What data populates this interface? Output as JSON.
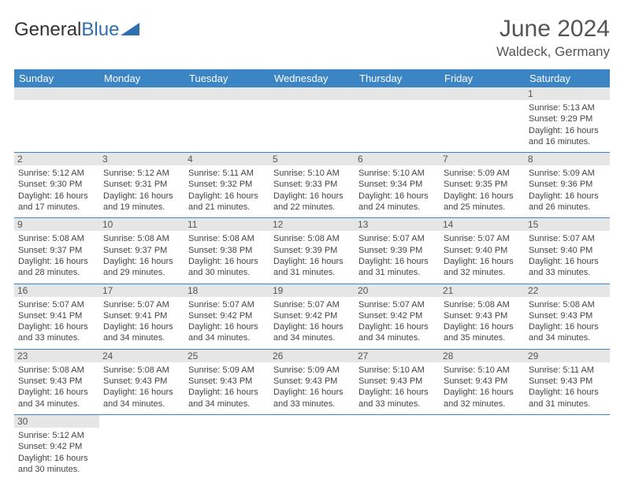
{
  "logo": {
    "text1": "General",
    "text2": "Blue",
    "triangle_color": "#2f6fb0"
  },
  "header": {
    "month": "June 2024",
    "location": "Waldeck, Germany"
  },
  "colors": {
    "header_bg": "#3b85c4",
    "header_text": "#ffffff",
    "daynum_bg": "#e6e6e6",
    "border": "#3b85c4",
    "text": "#444444"
  },
  "columns": [
    "Sunday",
    "Monday",
    "Tuesday",
    "Wednesday",
    "Thursday",
    "Friday",
    "Saturday"
  ],
  "weeks": [
    [
      null,
      null,
      null,
      null,
      null,
      null,
      {
        "n": "1",
        "sr": "Sunrise: 5:13 AM",
        "ss": "Sunset: 9:29 PM",
        "d1": "Daylight: 16 hours",
        "d2": "and 16 minutes."
      }
    ],
    [
      {
        "n": "2",
        "sr": "Sunrise: 5:12 AM",
        "ss": "Sunset: 9:30 PM",
        "d1": "Daylight: 16 hours",
        "d2": "and 17 minutes."
      },
      {
        "n": "3",
        "sr": "Sunrise: 5:12 AM",
        "ss": "Sunset: 9:31 PM",
        "d1": "Daylight: 16 hours",
        "d2": "and 19 minutes."
      },
      {
        "n": "4",
        "sr": "Sunrise: 5:11 AM",
        "ss": "Sunset: 9:32 PM",
        "d1": "Daylight: 16 hours",
        "d2": "and 21 minutes."
      },
      {
        "n": "5",
        "sr": "Sunrise: 5:10 AM",
        "ss": "Sunset: 9:33 PM",
        "d1": "Daylight: 16 hours",
        "d2": "and 22 minutes."
      },
      {
        "n": "6",
        "sr": "Sunrise: 5:10 AM",
        "ss": "Sunset: 9:34 PM",
        "d1": "Daylight: 16 hours",
        "d2": "and 24 minutes."
      },
      {
        "n": "7",
        "sr": "Sunrise: 5:09 AM",
        "ss": "Sunset: 9:35 PM",
        "d1": "Daylight: 16 hours",
        "d2": "and 25 minutes."
      },
      {
        "n": "8",
        "sr": "Sunrise: 5:09 AM",
        "ss": "Sunset: 9:36 PM",
        "d1": "Daylight: 16 hours",
        "d2": "and 26 minutes."
      }
    ],
    [
      {
        "n": "9",
        "sr": "Sunrise: 5:08 AM",
        "ss": "Sunset: 9:37 PM",
        "d1": "Daylight: 16 hours",
        "d2": "and 28 minutes."
      },
      {
        "n": "10",
        "sr": "Sunrise: 5:08 AM",
        "ss": "Sunset: 9:37 PM",
        "d1": "Daylight: 16 hours",
        "d2": "and 29 minutes."
      },
      {
        "n": "11",
        "sr": "Sunrise: 5:08 AM",
        "ss": "Sunset: 9:38 PM",
        "d1": "Daylight: 16 hours",
        "d2": "and 30 minutes."
      },
      {
        "n": "12",
        "sr": "Sunrise: 5:08 AM",
        "ss": "Sunset: 9:39 PM",
        "d1": "Daylight: 16 hours",
        "d2": "and 31 minutes."
      },
      {
        "n": "13",
        "sr": "Sunrise: 5:07 AM",
        "ss": "Sunset: 9:39 PM",
        "d1": "Daylight: 16 hours",
        "d2": "and 31 minutes."
      },
      {
        "n": "14",
        "sr": "Sunrise: 5:07 AM",
        "ss": "Sunset: 9:40 PM",
        "d1": "Daylight: 16 hours",
        "d2": "and 32 minutes."
      },
      {
        "n": "15",
        "sr": "Sunrise: 5:07 AM",
        "ss": "Sunset: 9:40 PM",
        "d1": "Daylight: 16 hours",
        "d2": "and 33 minutes."
      }
    ],
    [
      {
        "n": "16",
        "sr": "Sunrise: 5:07 AM",
        "ss": "Sunset: 9:41 PM",
        "d1": "Daylight: 16 hours",
        "d2": "and 33 minutes."
      },
      {
        "n": "17",
        "sr": "Sunrise: 5:07 AM",
        "ss": "Sunset: 9:41 PM",
        "d1": "Daylight: 16 hours",
        "d2": "and 34 minutes."
      },
      {
        "n": "18",
        "sr": "Sunrise: 5:07 AM",
        "ss": "Sunset: 9:42 PM",
        "d1": "Daylight: 16 hours",
        "d2": "and 34 minutes."
      },
      {
        "n": "19",
        "sr": "Sunrise: 5:07 AM",
        "ss": "Sunset: 9:42 PM",
        "d1": "Daylight: 16 hours",
        "d2": "and 34 minutes."
      },
      {
        "n": "20",
        "sr": "Sunrise: 5:07 AM",
        "ss": "Sunset: 9:42 PM",
        "d1": "Daylight: 16 hours",
        "d2": "and 34 minutes."
      },
      {
        "n": "21",
        "sr": "Sunrise: 5:08 AM",
        "ss": "Sunset: 9:43 PM",
        "d1": "Daylight: 16 hours",
        "d2": "and 35 minutes."
      },
      {
        "n": "22",
        "sr": "Sunrise: 5:08 AM",
        "ss": "Sunset: 9:43 PM",
        "d1": "Daylight: 16 hours",
        "d2": "and 34 minutes."
      }
    ],
    [
      {
        "n": "23",
        "sr": "Sunrise: 5:08 AM",
        "ss": "Sunset: 9:43 PM",
        "d1": "Daylight: 16 hours",
        "d2": "and 34 minutes."
      },
      {
        "n": "24",
        "sr": "Sunrise: 5:08 AM",
        "ss": "Sunset: 9:43 PM",
        "d1": "Daylight: 16 hours",
        "d2": "and 34 minutes."
      },
      {
        "n": "25",
        "sr": "Sunrise: 5:09 AM",
        "ss": "Sunset: 9:43 PM",
        "d1": "Daylight: 16 hours",
        "d2": "and 34 minutes."
      },
      {
        "n": "26",
        "sr": "Sunrise: 5:09 AM",
        "ss": "Sunset: 9:43 PM",
        "d1": "Daylight: 16 hours",
        "d2": "and 33 minutes."
      },
      {
        "n": "27",
        "sr": "Sunrise: 5:10 AM",
        "ss": "Sunset: 9:43 PM",
        "d1": "Daylight: 16 hours",
        "d2": "and 33 minutes."
      },
      {
        "n": "28",
        "sr": "Sunrise: 5:10 AM",
        "ss": "Sunset: 9:43 PM",
        "d1": "Daylight: 16 hours",
        "d2": "and 32 minutes."
      },
      {
        "n": "29",
        "sr": "Sunrise: 5:11 AM",
        "ss": "Sunset: 9:43 PM",
        "d1": "Daylight: 16 hours",
        "d2": "and 31 minutes."
      }
    ],
    [
      {
        "n": "30",
        "sr": "Sunrise: 5:12 AM",
        "ss": "Sunset: 9:42 PM",
        "d1": "Daylight: 16 hours",
        "d2": "and 30 minutes."
      },
      null,
      null,
      null,
      null,
      null,
      null
    ]
  ]
}
